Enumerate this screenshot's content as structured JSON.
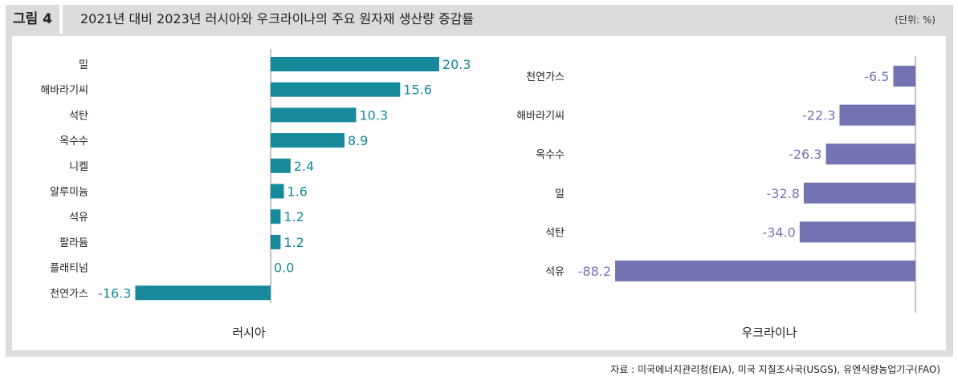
{
  "header": {
    "figure_label": "그림 4",
    "title": "2021년 대비 2023년 러시아와 우크라이나의 주요 원자재 생산량 증감률",
    "unit": "(단위: %)"
  },
  "source": "자료 : 미국에너지관리청(EIA), 미국 지질조사국(USGS), 유엔식량농업기구(FAO)",
  "colors": {
    "russia": "#16899a",
    "ukraine": "#7373b3"
  },
  "chart_data": [
    {
      "type": "bar",
      "orientation": "horizontal",
      "xlabel": "러시아",
      "categories": [
        "밀",
        "해바라기씨",
        "석탄",
        "옥수수",
        "니켈",
        "알루미늄",
        "석유",
        "팔라듐",
        "플래티넘",
        "천연가스"
      ],
      "values": [
        20.3,
        15.6,
        10.3,
        8.9,
        2.4,
        1.6,
        1.2,
        1.2,
        0.0,
        -16.3
      ],
      "labels": [
        "20.3",
        "15.6",
        "10.3",
        "8.9",
        "2.4",
        "1.6",
        "1.2",
        "1.2",
        "0.0",
        "-16.3"
      ]
    },
    {
      "type": "bar",
      "orientation": "horizontal",
      "xlabel": "우크라이나",
      "categories": [
        "천연가스",
        "해바라기씨",
        "옥수수",
        "밀",
        "석탄",
        "석유"
      ],
      "values": [
        -6.5,
        -22.3,
        -26.3,
        -32.8,
        -34.0,
        -88.2
      ],
      "labels": [
        "-6.5",
        "-22.3",
        "-26.3",
        "-32.8",
        "-34.0",
        "-88.2"
      ]
    }
  ]
}
